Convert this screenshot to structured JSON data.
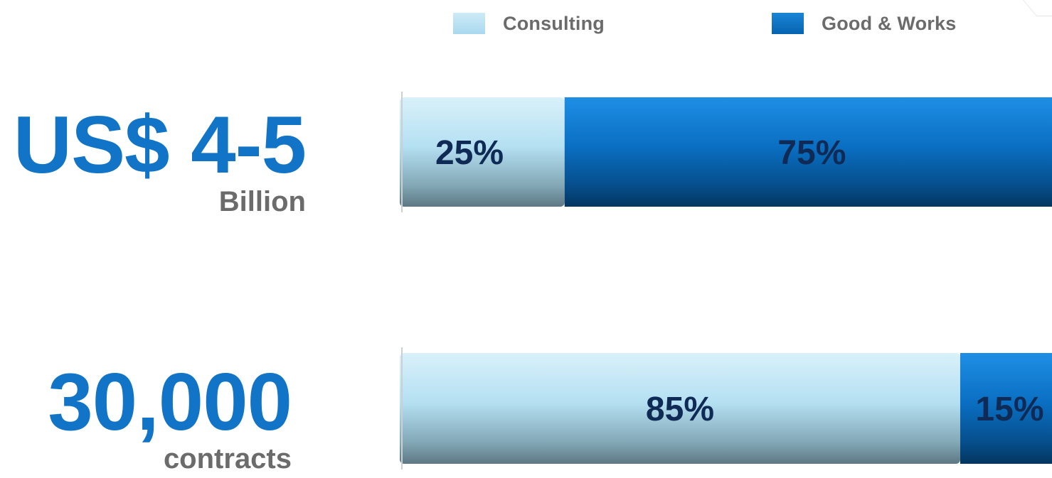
{
  "legend": {
    "consulting_label": "Consulting",
    "goods_label": "Good & Works",
    "consulting_color": "#b9e3f3",
    "goods_color": "#0a72c6"
  },
  "metrics": [
    {
      "value": "US$ 4-5",
      "unit": "Billion"
    },
    {
      "value": "30,000",
      "unit": "contracts"
    }
  ],
  "chart_data": {
    "type": "bar",
    "orientation": "horizontal",
    "stacked": true,
    "percent": true,
    "categories": [
      "US$ 4-5 Billion",
      "30,000 contracts"
    ],
    "series": [
      {
        "name": "Consulting",
        "values": [
          25,
          85
        ],
        "labels": [
          "25%",
          "85%"
        ],
        "color": "#b9e3f3"
      },
      {
        "name": "Good & Works",
        "values": [
          75,
          15
        ],
        "labels": [
          "75%",
          "15%"
        ],
        "color": "#0a72c6"
      }
    ],
    "xlim": [
      0,
      100
    ],
    "grid": false,
    "legend_position": "top"
  }
}
